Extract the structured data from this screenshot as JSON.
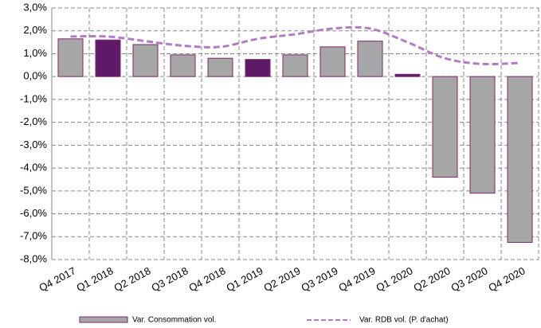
{
  "chart_data": {
    "type": "bar-line",
    "categories": [
      "Q4 2017",
      "Q1 2018",
      "Q2 2018",
      "Q3 2018",
      "Q4 2018",
      "Q1 2019",
      "Q2 2019",
      "Q3 2019",
      "Q4 2019",
      "Q1 2020",
      "Q2 2020",
      "Q3 2020",
      "Q4 2020"
    ],
    "series": [
      {
        "name": "Var. Consommation vol.",
        "type": "bar",
        "color": "#a6a6a6",
        "edge_color": "#7b2a6e",
        "colors": [
          "#a6a6a6",
          "#5e1a66",
          "#a6a6a6",
          "#a6a6a6",
          "#a6a6a6",
          "#5e1a66",
          "#a6a6a6",
          "#a6a6a6",
          "#a6a6a6",
          "#5e1a66",
          "#a6a6a6",
          "#a6a6a6",
          "#a6a6a6"
        ],
        "values": [
          1.65,
          1.6,
          1.4,
          0.95,
          0.8,
          0.75,
          0.95,
          1.3,
          1.55,
          0.1,
          -4.4,
          -5.1,
          -7.25
        ]
      },
      {
        "name": "Var. RDB vol. (P. d'achat)",
        "type": "line",
        "color": "#b07cc6",
        "dashed": true,
        "smooth": true,
        "values": [
          1.75,
          1.75,
          1.55,
          1.35,
          1.3,
          1.65,
          1.85,
          2.1,
          2.1,
          1.5,
          0.8,
          0.55,
          0.6
        ]
      }
    ],
    "ylim": [
      -8,
      3
    ],
    "yticks": [
      {
        "value": 3,
        "label": "3,0%"
      },
      {
        "value": 2,
        "label": "2,0%"
      },
      {
        "value": 1,
        "label": "1,0%"
      },
      {
        "value": 0,
        "label": "0,0%"
      },
      {
        "value": -1,
        "label": "-1,0%"
      },
      {
        "value": -2,
        "label": "-2,0%"
      },
      {
        "value": -3,
        "label": "-3,0%"
      },
      {
        "value": -4,
        "label": "-4,0%"
      },
      {
        "value": -5,
        "label": "-5,0%"
      },
      {
        "value": -6,
        "label": "-6,0%"
      },
      {
        "value": -7,
        "label": "-7,0%"
      },
      {
        "value": -8,
        "label": "-8,0%"
      }
    ],
    "grid": true,
    "legend": "bottom"
  }
}
